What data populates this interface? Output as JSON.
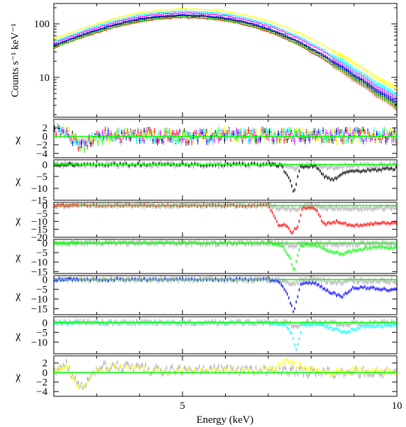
{
  "chart_data": [
    {
      "type": "line",
      "panel": "spectrum",
      "ylabel": "Counts s⁻¹ keV⁻¹",
      "yscale": "log",
      "ylim": [
        1.8,
        240
      ],
      "xlim": [
        2.0,
        10.0
      ],
      "ytick_labels": [
        "10",
        "100"
      ],
      "series": [
        {
          "color": "#ffff00",
          "x": [
            2.0,
            2.5,
            3.0,
            3.5,
            4.0,
            4.5,
            5.0,
            5.5,
            6.0,
            6.5,
            7.0,
            7.5,
            8.0,
            8.5,
            9.0,
            9.5,
            10.0
          ],
          "y": [
            52,
            72,
            100,
            130,
            160,
            180,
            190,
            186,
            170,
            143,
            112,
            80,
            52,
            31,
            18,
            10,
            6
          ]
        },
        {
          "color": "#00ffff",
          "x": [
            2.0,
            2.5,
            3.0,
            3.5,
            4.0,
            4.5,
            5.0,
            5.5,
            6.0,
            6.5,
            7.0,
            7.5,
            8.0,
            8.5,
            9.0,
            9.5,
            10.0
          ],
          "y": [
            46,
            65,
            90,
            118,
            145,
            163,
            172,
            168,
            152,
            127,
            98,
            68,
            43,
            25,
            14,
            7.8,
            4.6
          ]
        },
        {
          "color": "#ff00ff",
          "x": [
            2.0,
            2.5,
            3.0,
            3.5,
            4.0,
            4.5,
            5.0,
            5.5,
            6.0,
            6.5,
            7.0,
            7.5,
            8.0,
            8.5,
            9.0,
            9.5,
            10.0
          ],
          "y": [
            43,
            61,
            84,
            110,
            136,
            152,
            160,
            156,
            141,
            118,
            91,
            63,
            40,
            23,
            13,
            7,
            4.1
          ]
        },
        {
          "color": "#0000ff",
          "x": [
            2.0,
            2.5,
            3.0,
            3.5,
            4.0,
            4.5,
            5.0,
            5.5,
            6.0,
            6.5,
            7.0,
            7.5,
            8.0,
            8.5,
            9.0,
            9.5,
            10.0
          ],
          "y": [
            40,
            56,
            77,
            101,
            125,
            140,
            147,
            143,
            129,
            107,
            82,
            56,
            35,
            20,
            11,
            6,
            3.4
          ]
        },
        {
          "color": "#000000",
          "x": [
            2.0,
            2.5,
            3.0,
            3.5,
            4.0,
            4.5,
            5.0,
            5.5,
            6.0,
            6.5,
            7.0,
            7.5,
            8.0,
            8.5,
            9.0,
            9.5,
            10.0
          ],
          "y": [
            38,
            54,
            74,
            97,
            120,
            135,
            142,
            138,
            124,
            103,
            78,
            53,
            33,
            19,
            10.5,
            5.6,
            3.1
          ]
        },
        {
          "color": "#00ff00",
          "x": [
            2.0,
            2.5,
            3.0,
            3.5,
            4.0,
            4.5,
            5.0,
            5.5,
            6.0,
            6.5,
            7.0,
            7.5,
            8.0,
            8.5,
            9.0,
            9.5,
            10.0
          ],
          "y": [
            36,
            51,
            70,
            92,
            114,
            128,
            135,
            131,
            118,
            97,
            74,
            50,
            31,
            17.5,
            9.6,
            5.1,
            2.8
          ]
        },
        {
          "color": "#ff0000",
          "x": [
            2.0,
            2.5,
            3.0,
            3.5,
            4.0,
            4.5,
            5.0,
            5.5,
            6.0,
            6.5,
            7.0,
            7.5,
            8.0,
            8.5,
            9.0,
            9.5,
            10.0
          ],
          "y": [
            35,
            50,
            68,
            89,
            110,
            124,
            131,
            127,
            114,
            94,
            71,
            48,
            29,
            16.5,
            9,
            4.8,
            2.6
          ]
        }
      ]
    },
    {
      "type": "line",
      "panel": "residuals-all",
      "ylabel": "χ",
      "ylim": [
        -5,
        4
      ],
      "ytick_labels": [
        "2",
        "0",
        "−2",
        "−4"
      ],
      "ytick_values": [
        2,
        0,
        -2,
        -4
      ],
      "series_colors": [
        "#000000",
        "#ff0000",
        "#00ff00",
        "#0000ff",
        "#00ffff",
        "#ff00ff",
        "#ffff00"
      ],
      "x": [
        2.0,
        2.3,
        2.6,
        2.9,
        3.2,
        3.5,
        4.0,
        5.0,
        6.0,
        7.0,
        8.0,
        9.0,
        10.0
      ],
      "y": [
        1,
        1.5,
        -2.5,
        -0.5,
        0.3,
        0,
        0.2,
        -0.2,
        0.3,
        0.2,
        0,
        0.3,
        0.1
      ]
    },
    {
      "type": "line",
      "panel": "residuals-black",
      "ylabel": "χ",
      "ylim": [
        -15,
        2
      ],
      "ytick_labels": [
        "0",
        "−5",
        "−10",
        "−15"
      ],
      "ytick_values": [
        0,
        -5,
        -10,
        -15
      ],
      "color": "#000000",
      "x": [
        2.0,
        3.0,
        4.0,
        5.0,
        6.0,
        7.0,
        7.3,
        7.5,
        7.6,
        7.75,
        8.1,
        8.3,
        8.5,
        8.8,
        9.2,
        10.0
      ],
      "y": [
        0,
        0,
        0,
        0,
        0,
        0,
        -0.5,
        -6,
        -12,
        -1,
        -0.5,
        -5,
        -6.5,
        -3,
        -2.5,
        -1.5
      ]
    },
    {
      "type": "line",
      "panel": "residuals-red",
      "ylabel": "χ",
      "ylim": [
        -20,
        2
      ],
      "ytick_labels": [
        "0",
        "−5",
        "−10",
        "−15",
        "−20"
      ],
      "ytick_values": [
        0,
        -5,
        -10,
        -15,
        -20
      ],
      "color": "#ff0000",
      "x": [
        2.0,
        3.0,
        4.0,
        5.0,
        6.0,
        7.0,
        7.25,
        7.4,
        7.55,
        7.7,
        7.8,
        8.1,
        8.3,
        8.6,
        9.0,
        9.5,
        10.0
      ],
      "y": [
        0,
        0,
        0,
        0,
        0,
        0,
        -13,
        -12,
        -17,
        -13,
        -1.5,
        -2,
        -12,
        -10,
        -13,
        -11,
        -11
      ]
    },
    {
      "type": "line",
      "panel": "residuals-green",
      "ylabel": "χ",
      "ylim": [
        -16,
        2
      ],
      "ytick_labels": [
        "0",
        "−5",
        "−10",
        "−15"
      ],
      "ytick_values": [
        0,
        -5,
        -10,
        -15
      ],
      "color": "#00ff00",
      "x": [
        2.0,
        3.0,
        4.0,
        5.0,
        6.0,
        7.0,
        7.3,
        7.5,
        7.6,
        7.75,
        8.1,
        8.4,
        8.7,
        9.0,
        9.5,
        10.0
      ],
      "y": [
        0,
        0,
        0,
        0,
        0,
        0,
        -1,
        -7,
        -15,
        -1,
        -1,
        -4,
        -6,
        -4,
        -2,
        -2.5
      ]
    },
    {
      "type": "line",
      "panel": "residuals-blue",
      "ylabel": "χ",
      "ylim": [
        -18,
        2
      ],
      "ytick_labels": [
        "0",
        "−5",
        "−10",
        "−15"
      ],
      "ytick_values": [
        0,
        -5,
        -10,
        -15
      ],
      "color": "#0000ff",
      "x": [
        2.0,
        3.0,
        4.0,
        5.0,
        6.0,
        7.0,
        7.25,
        7.45,
        7.6,
        7.75,
        8.1,
        8.4,
        8.7,
        9.0,
        9.5,
        10.0
      ],
      "y": [
        0,
        0,
        0,
        0,
        0,
        0,
        -1,
        -8,
        -17,
        -2,
        -2,
        -6,
        -9,
        -4,
        -4.5,
        -5.5
      ]
    },
    {
      "type": "line",
      "panel": "residuals-cyan",
      "ylabel": "χ",
      "ylim": [
        -16,
        3
      ],
      "ytick_labels": [
        "0",
        "−5",
        "−10"
      ],
      "ytick_values": [
        0,
        -5,
        -10
      ],
      "color": "#00ffff",
      "x": [
        2.0,
        3.0,
        4.0,
        5.0,
        6.0,
        7.0,
        7.4,
        7.55,
        7.65,
        7.8,
        8.2,
        8.5,
        8.8,
        9.2,
        10.0
      ],
      "y": [
        0,
        0,
        0,
        0,
        0,
        0,
        -1,
        -6,
        -14,
        -1,
        -1,
        -3,
        -5,
        -2,
        -1.5
      ]
    },
    {
      "type": "line",
      "panel": "residuals-yellow",
      "ylabel": "χ",
      "ylim": [
        -5,
        3.5
      ],
      "ytick_labels": [
        "2",
        "0",
        "−2",
        "−4"
      ],
      "ytick_values": [
        2,
        0,
        -2,
        -4
      ],
      "color": "#ffff00",
      "xlabel": "Energy (keV)",
      "xtick_labels": [
        "5",
        "10"
      ],
      "xtick_values": [
        5,
        10
      ],
      "x": [
        2.0,
        2.3,
        2.6,
        2.9,
        3.2,
        3.5,
        4.0,
        4.5,
        5.0,
        5.5,
        6.0,
        6.5,
        7.0,
        7.5,
        7.6,
        8.0,
        8.5,
        9.0,
        9.5,
        10.0
      ],
      "y": [
        0.5,
        1.5,
        -3.5,
        -0.3,
        1.2,
        1.3,
        0.8,
        0.5,
        0.3,
        0.5,
        0.8,
        0.3,
        0.5,
        2.5,
        1.8,
        0.5,
        0,
        0.5,
        0.3,
        0.2
      ]
    }
  ]
}
